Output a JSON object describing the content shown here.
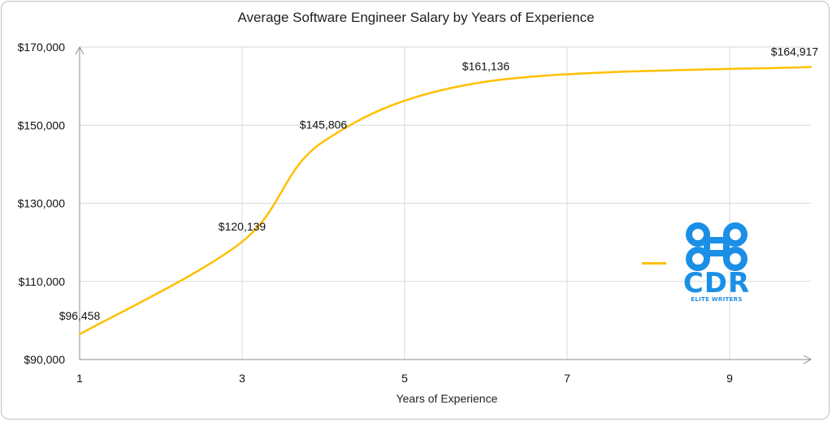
{
  "chart_data": {
    "type": "line",
    "title": "Average Software Engineer Salary by Years of Experience",
    "xlabel": "Years of Experience",
    "ylabel": "",
    "xlim": [
      1,
      10
    ],
    "ylim": [
      90000,
      170000
    ],
    "x_ticks": [
      1,
      3,
      5,
      7,
      9
    ],
    "x_tick_labels": [
      "1",
      "3",
      "5",
      "7",
      "9"
    ],
    "y_ticks": [
      90000,
      110000,
      130000,
      150000,
      170000
    ],
    "y_tick_labels": [
      "$90,000",
      "$110,000",
      "$130,000",
      "$150,000",
      "$170,000"
    ],
    "grid": true,
    "smooth": true,
    "series": [
      {
        "color": "#FFC000",
        "x": [
          1,
          3,
          4,
          6,
          10
        ],
        "y": [
          96458,
          120139,
          145806,
          161136,
          164917
        ],
        "labels": [
          "$96,458",
          "$120,139",
          "$145,806",
          "$161,136",
          "$164,917"
        ]
      }
    ]
  },
  "legend": {
    "position": "right"
  },
  "logo": {
    "text": "CDR",
    "subtext": "ELITE WRITERS",
    "color": "#1A8FE6"
  }
}
